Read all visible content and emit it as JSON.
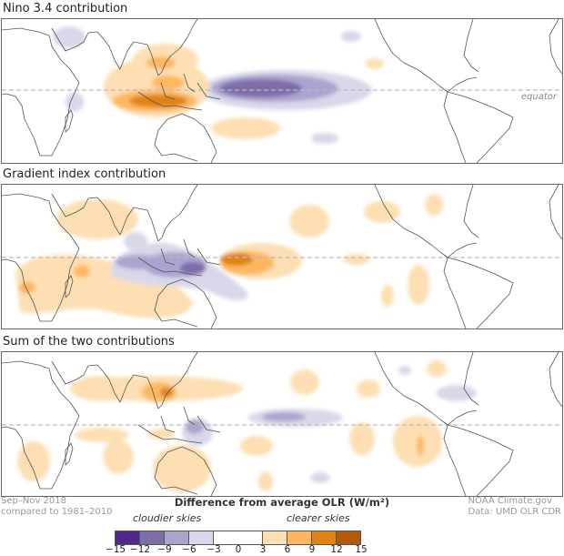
{
  "panels": [
    {
      "title": "Nino 3.4 contribution",
      "equator_label": "equator"
    },
    {
      "title": "Gradient index contribution"
    },
    {
      "title": "Sum of the two contributions"
    }
  ],
  "footer": {
    "period": "Sep–Nov 2018",
    "baseline": "compared to 1981–2010",
    "credit": "NOAA Climate.gov",
    "source": "Data: UMD OLR CDR"
  },
  "legend": {
    "title": "Difference from average OLR (W/m²)",
    "left_label": "cloudier skies",
    "right_label": "clearer skies",
    "ticks": [
      "−15",
      "−12",
      "−9",
      "−6",
      "−3",
      "0",
      "3",
      "6",
      "9",
      "12",
      "15"
    ],
    "colors": {
      "-4": "#4f2889",
      "-3": "#7e6ea8",
      "-2": "#aca4cf",
      "-1": "#d8d8ea",
      "0": "#ffffff",
      "1": "#fddfb3",
      "2": "#fdb762",
      "3": "#e08314",
      "4": "#b3590a"
    }
  }
}
